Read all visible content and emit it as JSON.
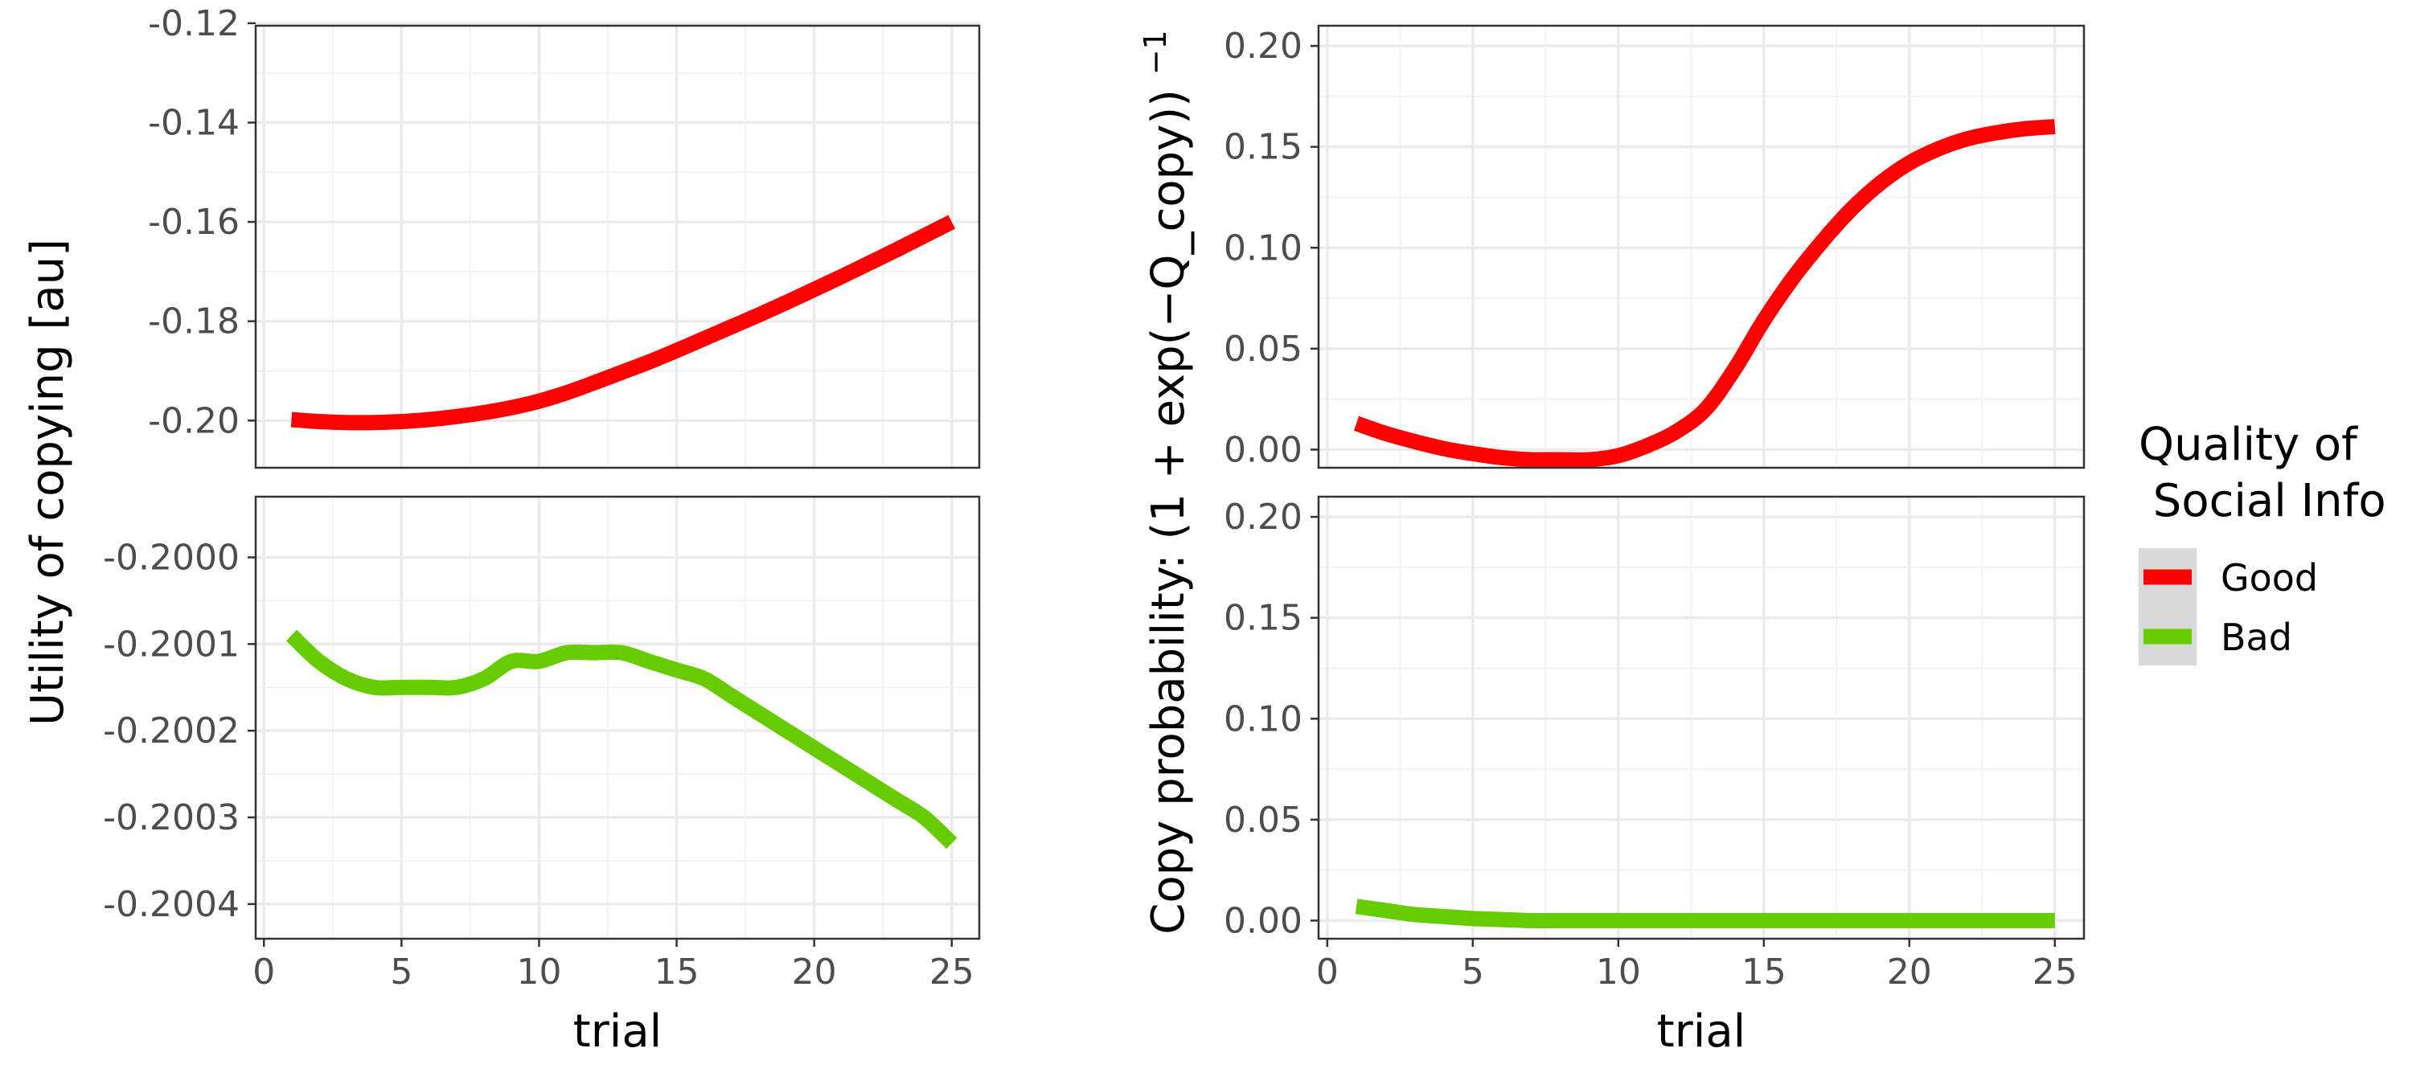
{
  "colors": {
    "good": "#ff0000",
    "bad": "#66cc00",
    "legend_key_bg": "#d9d9d9"
  },
  "legend": {
    "title_line1": "Quality of",
    "title_line2": " Social Info",
    "items": [
      {
        "label": "Good",
        "color": "#ff0000"
      },
      {
        "label": "Bad",
        "color": "#66cc00"
      }
    ]
  },
  "chart_data": [
    {
      "type": "line",
      "panel": "left-top",
      "series_name": "Good",
      "xlim": [
        -0.3,
        26
      ],
      "ylim": [
        -0.2095,
        -0.1205
      ],
      "xticks": [
        0,
        5,
        10,
        15,
        20,
        25
      ],
      "yticks": [
        -0.2,
        -0.18,
        -0.16,
        -0.14,
        -0.12
      ],
      "ytick_labels": [
        "-0.20",
        "-0.18",
        "-0.16",
        "-0.14",
        "-0.12"
      ],
      "x": [
        1,
        2,
        3,
        4,
        5,
        6,
        7,
        8,
        9,
        10,
        11,
        12,
        13,
        14,
        15,
        16,
        17,
        18,
        19,
        20,
        21,
        22,
        23,
        24,
        25
      ],
      "y": [
        -0.1998,
        -0.2002,
        -0.2004,
        -0.2004,
        -0.2002,
        -0.1998,
        -0.1992,
        -0.1984,
        -0.1974,
        -0.1961,
        -0.1944,
        -0.1924,
        -0.1903,
        -0.1882,
        -0.1859,
        -0.1835,
        -0.1811,
        -0.1787,
        -0.1762,
        -0.1736,
        -0.171,
        -0.1683,
        -0.1656,
        -0.1628,
        -0.16
      ]
    },
    {
      "type": "line",
      "panel": "left-bottom",
      "series_name": "Bad",
      "xlim": [
        -0.3,
        26
      ],
      "ylim": [
        -0.20044,
        -0.19993
      ],
      "xticks": [
        0,
        5,
        10,
        15,
        20,
        25
      ],
      "xtick_labels": [
        "0",
        "5",
        "10",
        "15",
        "20",
        "25"
      ],
      "yticks": [
        -0.2004,
        -0.2003,
        -0.2002,
        -0.2001,
        -0.2
      ],
      "ytick_labels": [
        "-0.2004",
        "-0.2003",
        "-0.2002",
        "-0.2001",
        "-0.2000"
      ],
      "xlabel": "trial",
      "x": [
        1,
        2,
        3,
        4,
        5,
        6,
        7,
        8,
        9,
        10,
        11,
        12,
        13,
        14,
        15,
        16,
        17,
        18,
        19,
        20,
        21,
        22,
        23,
        24,
        25
      ],
      "y": [
        -0.20009,
        -0.20012,
        -0.20014,
        -0.20015,
        -0.20015,
        -0.20015,
        -0.20015,
        -0.20014,
        -0.20012,
        -0.20012,
        -0.20011,
        -0.20011,
        -0.20011,
        -0.20012,
        -0.20013,
        -0.20014,
        -0.20016,
        -0.20018,
        -0.2002,
        -0.20022,
        -0.20024,
        -0.20026,
        -0.20028,
        -0.2003,
        -0.20033
      ]
    },
    {
      "type": "line",
      "panel": "right-top",
      "series_name": "Good",
      "xlim": [
        -0.3,
        26
      ],
      "ylim": [
        -0.009,
        0.21
      ],
      "xticks": [
        0,
        5,
        10,
        15,
        20,
        25
      ],
      "yticks": [
        0.0,
        0.05,
        0.1,
        0.15,
        0.2
      ],
      "ytick_labels": [
        "0.00",
        "0.05",
        "0.10",
        "0.15",
        "0.20"
      ],
      "x": [
        1,
        2,
        3,
        4,
        5,
        6,
        7,
        8,
        9,
        10,
        11,
        12,
        13,
        14,
        15,
        16,
        17,
        18,
        19,
        20,
        21,
        22,
        23,
        24,
        25
      ],
      "y": [
        0.013,
        0.008,
        0.004,
        0.0005,
        -0.002,
        -0.004,
        -0.005,
        -0.005,
        -0.005,
        -0.003,
        0.002,
        0.009,
        0.02,
        0.04,
        0.064,
        0.085,
        0.103,
        0.119,
        0.132,
        0.142,
        0.149,
        0.154,
        0.157,
        0.159,
        0.16
      ]
    },
    {
      "type": "line",
      "panel": "right-bottom",
      "series_name": "Bad",
      "xlim": [
        -0.3,
        26
      ],
      "ylim": [
        -0.009,
        0.21
      ],
      "xticks": [
        0,
        5,
        10,
        15,
        20,
        25
      ],
      "xtick_labels": [
        "0",
        "5",
        "10",
        "15",
        "20",
        "25"
      ],
      "yticks": [
        0.0,
        0.05,
        0.1,
        0.15,
        0.2
      ],
      "ytick_labels": [
        "0.00",
        "0.05",
        "0.10",
        "0.15",
        "0.20"
      ],
      "xlabel": "trial",
      "x": [
        1,
        2,
        3,
        4,
        5,
        6,
        7,
        8,
        9,
        10,
        11,
        12,
        13,
        14,
        15,
        16,
        17,
        18,
        19,
        20,
        21,
        22,
        23,
        24,
        25
      ],
      "y": [
        0.007,
        0.005,
        0.003,
        0.002,
        0.001,
        0.0005,
        0.0,
        0.0,
        0.0,
        0.0,
        0.0,
        0.0,
        0.0,
        0.0,
        0.0,
        0.0,
        0.0,
        0.0,
        0.0,
        0.0,
        0.0,
        0.0,
        0.0,
        0.0,
        0.0
      ]
    }
  ],
  "left_ylabel": "Utility of copying [au]",
  "right_ylabel": "Copy probability: (1 + exp(−Q_copy))",
  "right_ylabel_superscript": "−1"
}
